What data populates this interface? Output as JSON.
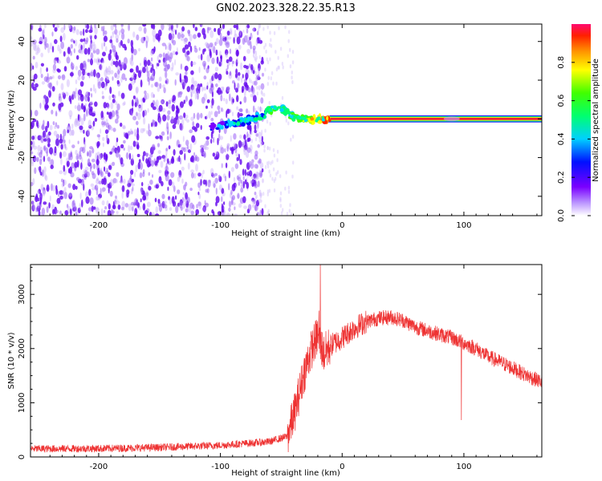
{
  "figure_title": "GN02.2023.328.22.35.R13",
  "colors": {
    "spectrogram_noise": "#7b2cf0",
    "signal_band": "#e8203a",
    "snr_line": "#ee3333"
  },
  "colorbar": {
    "label": "Normalized spectral amplitude",
    "ticks": [
      "0.0",
      "0.2",
      "0.4",
      "0.6",
      "0.8"
    ],
    "tick_values": [
      0.0,
      0.2,
      0.4,
      0.6,
      0.8
    ],
    "range": [
      0,
      1
    ],
    "colormap": "gist_rainbow_r"
  },
  "chart_data": [
    {
      "type": "heatmap",
      "title": "",
      "xlabel": "Height of straight line (km)",
      "ylabel": "Frequency (Hz)",
      "xlim": [
        -256,
        164
      ],
      "ylim": [
        -50,
        49
      ],
      "xticks": [
        -200,
        -100,
        0,
        100
      ],
      "xtick_labels": [
        "-200",
        "-100",
        "0",
        "100"
      ],
      "yticks": [
        -40,
        -20,
        0,
        20,
        40
      ],
      "ytick_labels": [
        "-40",
        "-20",
        "0",
        "20",
        "40"
      ],
      "noise_region_x": [
        -256,
        -65
      ],
      "noise_amplitude": 0.12,
      "signal_track": {
        "x": [
          -105,
          -95,
          -85,
          -75,
          -65,
          -58,
          -52,
          -46,
          -40,
          -34,
          -28,
          -20,
          -10,
          0,
          10,
          30,
          60,
          90,
          120,
          164
        ],
        "y": [
          -4,
          -3,
          -2,
          0,
          2,
          5,
          6,
          4,
          1,
          0,
          -1,
          0,
          0,
          0,
          0,
          0,
          0,
          0,
          0,
          0
        ],
        "amplitude": [
          0.15,
          0.18,
          0.2,
          0.25,
          0.3,
          0.4,
          0.45,
          0.4,
          0.45,
          0.5,
          0.55,
          0.7,
          0.8,
          0.85,
          0.9,
          0.95,
          0.97,
          0.98,
          0.99,
          1.0
        ]
      }
    },
    {
      "type": "line",
      "title": "",
      "xlabel": "Height of straight line (km)",
      "ylabel": "SNR (10 * v/v)",
      "xlim": [
        -256,
        164
      ],
      "ylim": [
        0,
        3550
      ],
      "xticks": [
        -200,
        -100,
        0,
        100
      ],
      "xtick_labels": [
        "-200",
        "-100",
        "0",
        "100"
      ],
      "yticks": [
        0,
        1000,
        2000,
        3000
      ],
      "ytick_labels": [
        "0",
        "1000",
        "2000",
        "3000"
      ],
      "series": [
        {
          "x": [
            -256,
            -200,
            -150,
            -100,
            -60,
            -45,
            -38,
            -32,
            -25,
            -20,
            -15,
            -10,
            0,
            10,
            20,
            30,
            40,
            50,
            60,
            70,
            80,
            90,
            100,
            110,
            120,
            130,
            140,
            150,
            164
          ],
          "y": [
            150,
            155,
            175,
            215,
            280,
            380,
            900,
            1500,
            2000,
            2250,
            1900,
            2050,
            2200,
            2380,
            2500,
            2560,
            2580,
            2520,
            2400,
            2330,
            2260,
            2200,
            2100,
            2000,
            1850,
            1750,
            1640,
            1520,
            1380
          ],
          "noise": 70
        }
      ],
      "spikes": [
        {
          "x": -18,
          "y": 3550
        },
        {
          "x": -19,
          "y": 2700
        },
        {
          "x": 98,
          "y": 680
        }
      ]
    }
  ]
}
